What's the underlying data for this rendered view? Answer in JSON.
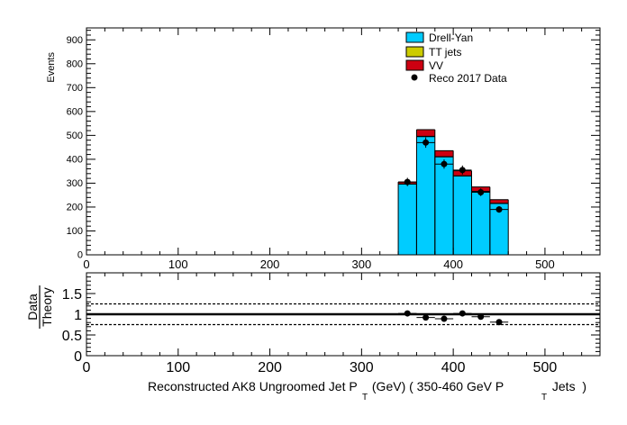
{
  "chart_data": [
    {
      "type": "bar",
      "subtype": "stacked-histogram",
      "ylabel": "Events",
      "xlim": [
        0,
        560
      ],
      "ylim": [
        0,
        950
      ],
      "bins": [
        [
          340,
          360
        ],
        [
          360,
          380
        ],
        [
          380,
          400
        ],
        [
          400,
          420
        ],
        [
          420,
          440
        ],
        [
          440,
          460
        ]
      ],
      "series": [
        {
          "name": "Drell-Yan",
          "color": "#00ccff",
          "values": [
            296,
            495,
            410,
            330,
            265,
            215
          ]
        },
        {
          "name": "TT jets",
          "color": "#cccc00",
          "values": [
            1,
            1,
            1,
            1,
            1,
            1
          ]
        },
        {
          "name": "VV",
          "color": "#cc0011",
          "values": [
            8,
            28,
            25,
            21,
            18,
            15
          ]
        }
      ],
      "data_points": {
        "name": "Reco 2017 Data",
        "x": [
          350,
          370,
          390,
          410,
          430,
          450
        ],
        "y": [
          305,
          470,
          380,
          355,
          262,
          190
        ]
      },
      "xticks": [
        "0",
        "100",
        "200",
        "300",
        "400",
        "500"
      ],
      "yticks": [
        "0",
        "100",
        "200",
        "300",
        "400",
        "500",
        "600",
        "700",
        "800",
        "900"
      ],
      "legend_position": "top-right",
      "grid": false
    },
    {
      "type": "scatter",
      "ylabel_numerator": "Data",
      "ylabel_denominator": "Theory",
      "xlabel_main": "Reconstructed AK8 Ungroomed Jet P",
      "xlabel_sub1": "T",
      "xlabel_mid": " (GeV) ( 350-460 GeV P",
      "xlabel_sub2": "T",
      "xlabel_end": " Jets  )",
      "xlim": [
        0,
        560
      ],
      "ylim": [
        0,
        2
      ],
      "x": [
        350,
        370,
        390,
        410,
        430,
        450
      ],
      "y": [
        1.02,
        0.92,
        0.89,
        1.02,
        0.94,
        0.81
      ],
      "reference_lines": [
        1.0,
        1.25,
        0.75
      ],
      "xticks": [
        "0",
        "100",
        "200",
        "300",
        "400",
        "500"
      ],
      "yticks": [
        "0",
        "0.5",
        "1",
        "1.5"
      ],
      "grid": false
    }
  ]
}
